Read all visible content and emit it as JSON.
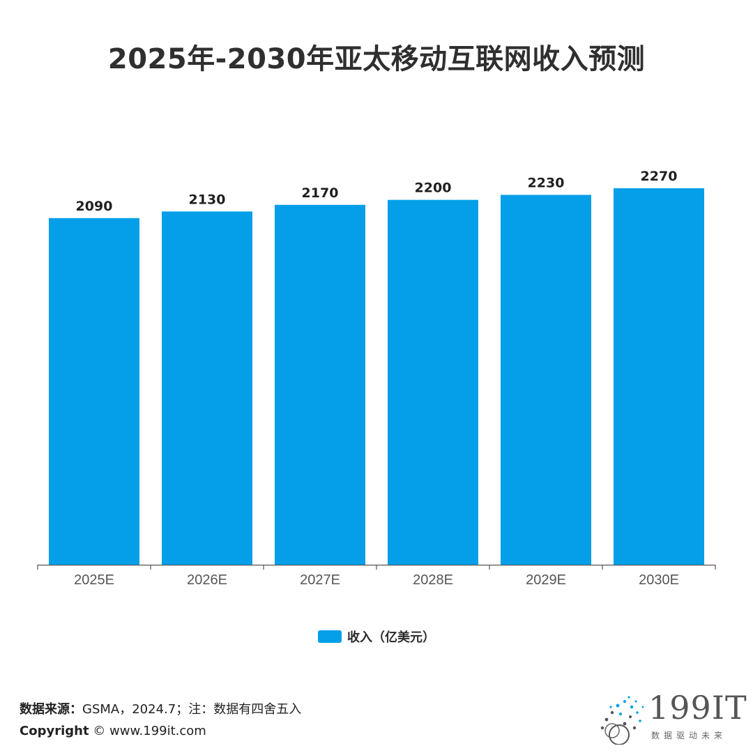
{
  "title": "2025年-2030年亚太移动互联网收入预测",
  "colors": {
    "bar": "#049FE8",
    "axis": "#555555"
  },
  "legend": {
    "label": "收入（亿美元）"
  },
  "footer": {
    "source_prefix": "数据来源：",
    "source_text": "GSMA，2024.7；注：数据有四舍五入",
    "copyright_prefix": "Copyright",
    "copyright_text": "©  www.199it.com"
  },
  "logo": {
    "text": "199IT",
    "tagline": "数据驱动未来",
    "icon": "dot-sphere-icon"
  },
  "chart_data": {
    "type": "bar",
    "categories": [
      "2025E",
      "2026E",
      "2027E",
      "2028E",
      "2029E",
      "2030E"
    ],
    "series": [
      {
        "name": "收入（亿美元）",
        "values": [
          2090,
          2130,
          2170,
          2200,
          2230,
          2270
        ]
      }
    ],
    "title": "2025年-2030年亚太移动互联网收入预测",
    "xlabel": "",
    "ylabel": "",
    "ylim": [
      0,
      2270
    ],
    "grid": false,
    "data_labels": true,
    "legend_position": "bottom"
  }
}
